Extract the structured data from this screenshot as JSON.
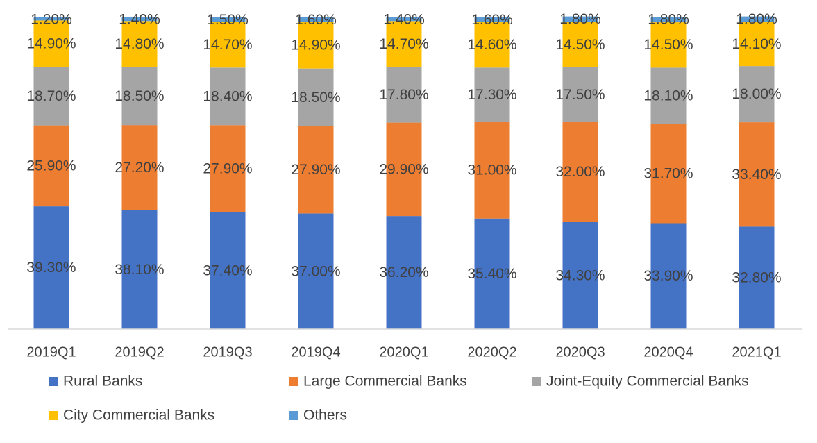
{
  "chart_data": {
    "type": "bar",
    "stacked": true,
    "categories": [
      "2019Q1",
      "2019Q2",
      "2019Q3",
      "2019Q4",
      "2020Q1",
      "2020Q2",
      "2020Q3",
      "2020Q4",
      "2021Q1"
    ],
    "series": [
      {
        "name": "Rural Banks",
        "color": "#4472C4",
        "values": [
          39.3,
          38.1,
          37.4,
          37.0,
          36.2,
          35.4,
          34.3,
          33.9,
          32.8
        ],
        "labels": [
          "39.30%",
          "38.10%",
          "37.40%",
          "37.00%",
          "36.20%",
          "35.40%",
          "34.30%",
          "33.90%",
          "32.80%"
        ]
      },
      {
        "name": "Large Commercial Banks",
        "color": "#ED7D31",
        "values": [
          25.9,
          27.2,
          27.9,
          27.9,
          29.9,
          31.0,
          32.0,
          31.7,
          33.4
        ],
        "labels": [
          "25.90%",
          "27.20%",
          "27.90%",
          "27.90%",
          "29.90%",
          "31.00%",
          "32.00%",
          "31.70%",
          "33.40%"
        ]
      },
      {
        "name": "Joint-Equity Commercial Banks",
        "color": "#A5A5A5",
        "values": [
          18.7,
          18.5,
          18.4,
          18.5,
          17.8,
          17.3,
          17.5,
          18.1,
          18.0
        ],
        "labels": [
          "18.70%",
          "18.50%",
          "18.40%",
          "18.50%",
          "17.80%",
          "17.30%",
          "17.50%",
          "18.10%",
          "18.00%"
        ]
      },
      {
        "name": "City Commercial Banks",
        "color": "#FFC000",
        "values": [
          14.9,
          14.8,
          14.7,
          14.9,
          14.7,
          14.6,
          14.5,
          14.5,
          14.1
        ],
        "labels": [
          "14.90%",
          "14.80%",
          "14.70%",
          "14.90%",
          "14.70%",
          "14.60%",
          "14.50%",
          "14.50%",
          "14.10%"
        ]
      },
      {
        "name": "Others",
        "color": "#5B9BD5",
        "values": [
          1.2,
          1.4,
          1.5,
          1.6,
          1.4,
          1.6,
          1.8,
          1.8,
          1.8
        ],
        "labels": [
          "1.20%",
          "1.40%",
          "1.50%",
          "1.60%",
          "1.40%",
          "1.60%",
          "1.80%",
          "1.80%",
          "1.80%"
        ]
      }
    ],
    "title": "",
    "xlabel": "",
    "ylabel": "",
    "ylim": [
      0,
      100
    ],
    "y_axis_shown": false,
    "grid": false,
    "legend": "bottom",
    "label_color": "#404040",
    "axis_color": "#D9D9D9"
  }
}
